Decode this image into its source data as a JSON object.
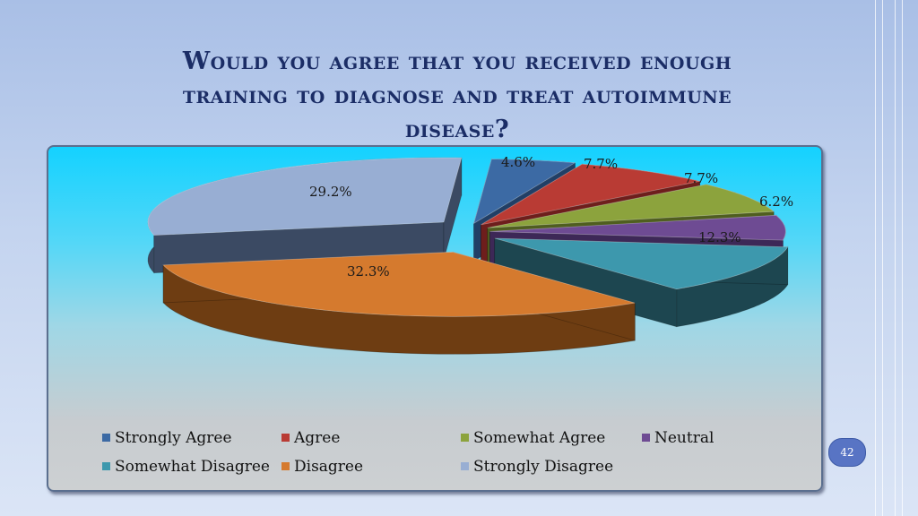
{
  "slide": {
    "title_line1": "Would you agree that you received enough",
    "title_line2": "training  to diagnose and treat autoimmune",
    "title_line3": "disease?",
    "page_number": "42"
  },
  "chart_data": {
    "type": "pie",
    "title": "",
    "style": "3d-exploded",
    "categories": [
      "Strongly Agree",
      "Agree",
      "Somewhat Agree",
      "Neutral",
      "Somewhat Disagree",
      "Disagree",
      "Strongly Disagree"
    ],
    "values": [
      4.6,
      7.7,
      7.7,
      6.2,
      12.3,
      32.3,
      29.2
    ],
    "data_labels": [
      "4.6%",
      "7.7%",
      "7.7%",
      "6.2%",
      "12.3%",
      "32.3%",
      "29.2%"
    ],
    "colors": [
      "#3c6aa4",
      "#b93b34",
      "#8ca33d",
      "#6e4b93",
      "#3d98ad",
      "#d57a2e",
      "#98aed3"
    ],
    "side_colors": [
      "#213f66",
      "#6e1e1c",
      "#4f5e1f",
      "#3d2857",
      "#1d4650",
      "#6e3d12",
      "#3b4a63"
    ],
    "legend_position": "bottom"
  }
}
